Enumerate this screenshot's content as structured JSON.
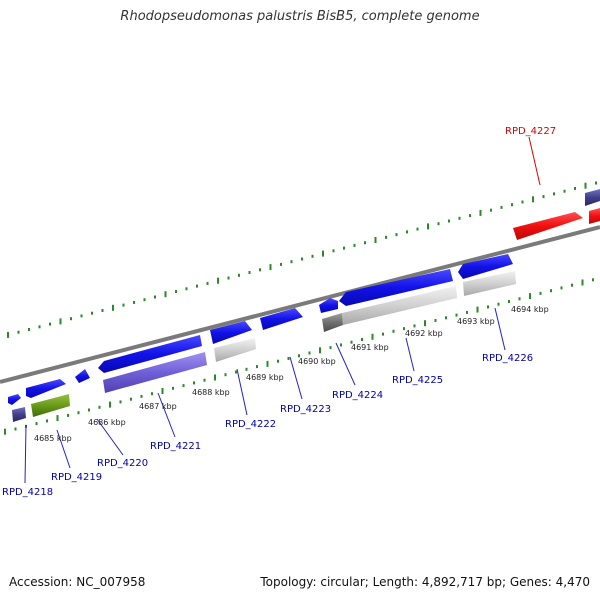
{
  "title": "Rhodopseudomonas palustris BisB5, complete genome",
  "footer": {
    "accession": "Accession: NC_007958",
    "summary": "Topology: circular; Length: 4,892,717 bp; Genes: 4,470"
  },
  "colors": {
    "forward_gene": "#1414e6",
    "highlight_gene": "#ee1111",
    "backbone": "#888888",
    "tick": "#2a8a2a",
    "label": "#0000aa",
    "highlight_label": "#dd0000"
  },
  "scale_labels": [
    "4685 kbp",
    "4686 kbp",
    "4687 kbp",
    "4688 kbp",
    "4689 kbp",
    "4690 kbp",
    "4691 kbp",
    "4692 kbp",
    "4693 kbp",
    "4694 kbp"
  ],
  "gene_labels": [
    "RPD_4218",
    "RPD_4219",
    "RPD_4220",
    "RPD_4221",
    "RPD_4222",
    "RPD_4223",
    "RPD_4224",
    "RPD_4225",
    "RPD_4226",
    "RPD_4227"
  ]
}
